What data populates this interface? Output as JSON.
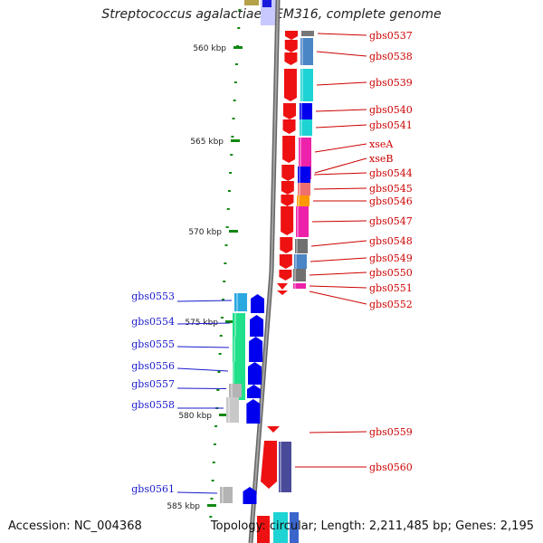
{
  "title": "Streptococcus agalactiae NEM316, complete genome",
  "accession": "Accession: NC_004368",
  "topology": "Topology: circular; Length: 2,211,485 bp; Genes: 2,195",
  "scale_ticks": [
    {
      "label": "560 kbp"
    },
    {
      "label": "565 kbp"
    },
    {
      "label": "570 kbp"
    },
    {
      "label": "575 kbp"
    },
    {
      "label": "580 kbp"
    },
    {
      "label": "585 kbp"
    }
  ],
  "colors": {
    "forward_label": "#cc0000",
    "reverse_label": "#1a1acc",
    "scale_tick": "#118811",
    "backbone": "#888888"
  },
  "forward_genes": [
    {
      "label": "gbs0537",
      "color": "#4a85c6"
    },
    {
      "label": "gbs0538",
      "color": "#4a85c6"
    },
    {
      "label": "gbs0539",
      "color": "#1ed3d3"
    },
    {
      "label": "gbs0540",
      "color": "#0000ee"
    },
    {
      "label": "gbs0541",
      "color": "#1ed3d3"
    },
    {
      "label": "xseA",
      "color": "#ee22aa"
    },
    {
      "label": "xseB",
      "color": "#ee22aa"
    },
    {
      "label": "gbs0544",
      "color": "#0000ee"
    },
    {
      "label": "gbs0545",
      "color": "#f07070"
    },
    {
      "label": "gbs0546",
      "color": "#ff9900"
    },
    {
      "label": "gbs0547",
      "color": "#ee22aa"
    },
    {
      "label": "gbs0548",
      "color": "#707070"
    },
    {
      "label": "gbs0549",
      "color": "#4a85c6"
    },
    {
      "label": "gbs0550",
      "color": "#707070"
    },
    {
      "label": "gbs0551",
      "color": "#ee22aa"
    },
    {
      "label": "gbs0552",
      "color": ""
    },
    {
      "label": "gbs0559",
      "color": ""
    },
    {
      "label": "gbs0560",
      "color": "#4a4a9a"
    }
  ],
  "reverse_genes": [
    {
      "label": "gbs0553",
      "color": "#2aa8e0"
    },
    {
      "label": "gbs0554",
      "color": "#20e08a"
    },
    {
      "label": "gbs0555",
      "color": "#20e08a"
    },
    {
      "label": "gbs0556",
      "color": "#20e08a"
    },
    {
      "label": "gbs0557",
      "color": "#b4b4b4"
    },
    {
      "label": "gbs0558",
      "color": "#c8c8c8"
    },
    {
      "label": "gbs0561",
      "color": "#b4b4b4"
    }
  ]
}
